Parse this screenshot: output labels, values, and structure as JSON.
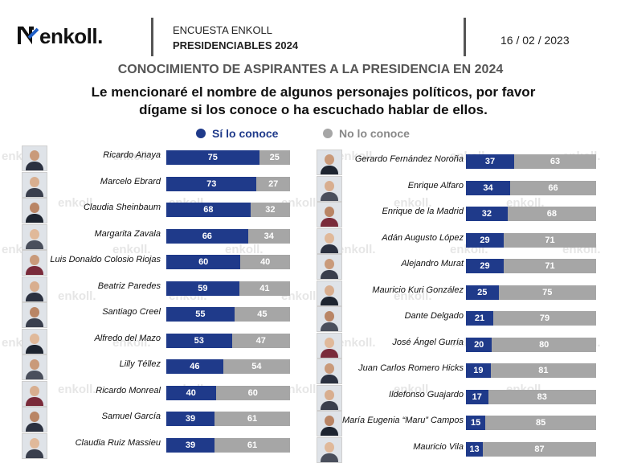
{
  "header": {
    "logo_text": "enkoll.",
    "survey_line1": "ENCUESTA ENKOLL",
    "survey_line2": "PRESIDENCIABLES 2024",
    "date": "16 / 02 / 2023"
  },
  "watermark_text": "enkoll.",
  "chart_data": {
    "type": "bar",
    "orientation": "horizontal-stacked",
    "title": "CONOCIMIENTO DE ASPIRANTES A LA PRESIDENCIA EN 2024",
    "subtitle": "Le mencionaré el nombre de algunos personajes políticos, por favor dígame si los conoce o ha escuchado hablar de ellos.",
    "legend": [
      {
        "label": "Sí lo conoce",
        "color": "#1f3a8a"
      },
      {
        "label": "No lo conoce",
        "color": "#a6a6a6"
      }
    ],
    "legend_position": "top",
    "left": [
      {
        "name": "Ricardo Anaya",
        "yes": 75,
        "no": 25
      },
      {
        "name": "Marcelo Ebrard",
        "yes": 73,
        "no": 27
      },
      {
        "name": "Claudia Sheinbaum",
        "yes": 68,
        "no": 32
      },
      {
        "name": "Margarita Zavala",
        "yes": 66,
        "no": 34
      },
      {
        "name": "Luis Donaldo Colosio Riojas",
        "yes": 60,
        "no": 40
      },
      {
        "name": "Beatriz Paredes",
        "yes": 59,
        "no": 41
      },
      {
        "name": "Santiago Creel",
        "yes": 55,
        "no": 45
      },
      {
        "name": "Alfredo del Mazo",
        "yes": 53,
        "no": 47
      },
      {
        "name": "Lilly Téllez",
        "yes": 46,
        "no": 54
      },
      {
        "name": "Ricardo Monreal",
        "yes": 40,
        "no": 60
      },
      {
        "name": "Samuel García",
        "yes": 39,
        "no": 61
      },
      {
        "name": "Claudia Ruiz Massieu",
        "yes": 39,
        "no": 61
      }
    ],
    "right": [
      {
        "name": "Gerardo Fernández Noroña",
        "yes": 37,
        "no": 63
      },
      {
        "name": "Enrique Alfaro",
        "yes": 34,
        "no": 66
      },
      {
        "name": "Enrique de la Madrid",
        "yes": 32,
        "no": 68
      },
      {
        "name": "Adán Augusto López",
        "yes": 29,
        "no": 71
      },
      {
        "name": "Alejandro Murat",
        "yes": 29,
        "no": 71
      },
      {
        "name": "Mauricio Kuri González",
        "yes": 25,
        "no": 75
      },
      {
        "name": "Dante Delgado",
        "yes": 21,
        "no": 79
      },
      {
        "name": "José Ángel Gurría",
        "yes": 20,
        "no": 80
      },
      {
        "name": "Juan Carlos Romero Hicks",
        "yes": 19,
        "no": 81
      },
      {
        "name": "Ildefonso Guajardo",
        "yes": 17,
        "no": 83
      },
      {
        "name": "María Eugenia “Maru” Campos",
        "yes": 15,
        "no": 85
      },
      {
        "name": "Mauricio Vila",
        "yes": 13,
        "no": 87
      }
    ]
  }
}
